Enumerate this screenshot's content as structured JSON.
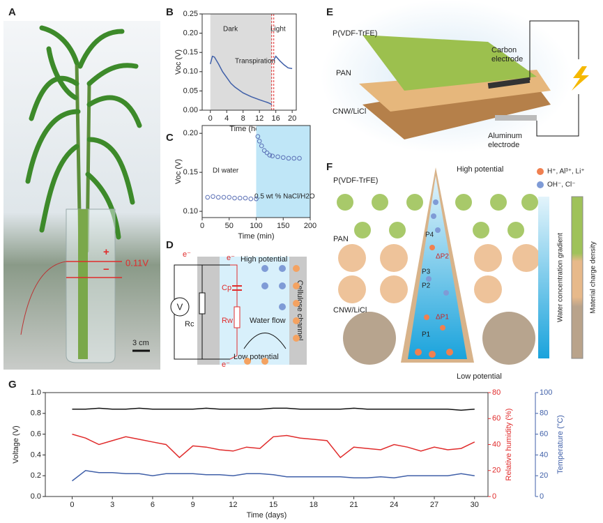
{
  "panels": {
    "a": "A",
    "b": "B",
    "c": "C",
    "d": "D",
    "e": "E",
    "f": "F",
    "g": "G"
  },
  "photo": {
    "voltage": "0.11V",
    "plus": "+",
    "minus": "−",
    "scale": "3 cm"
  },
  "circuit": {
    "electron": "e⁻",
    "electron_top": "e⁻",
    "electron_bottom": "e⁻",
    "high": "High potential",
    "low": "Low potential",
    "cp": "Cp",
    "rw": "Rw",
    "rc": "Rc",
    "flow": "Water flow",
    "channel": "Cellulose channel",
    "meter": "V"
  },
  "device": {
    "top": "P(VDF-TrFE)",
    "mid": "PAN",
    "bottom": "CNW/LiCl",
    "carbon": "Carbon\nelectrode",
    "aluminum": "Aluminum\nelectrode"
  },
  "mechanism": {
    "high": "High potential",
    "low": "Low potential",
    "top": "P(VDF-TrFE)",
    "mid": "PAN",
    "bottom": "CNW/LiCl",
    "cations": "H⁺, Al³⁺, Li⁺",
    "anions": "OH⁻, Cl⁻",
    "gradient": "Water concentration gradient",
    "charge": "Material charge density",
    "p4": "P4",
    "dp2": "ΔP2",
    "p3": "P3",
    "p2": "P2",
    "dp1": "ΔP1",
    "p1": "P1"
  },
  "chart_data": [
    {
      "type": "line",
      "xlabel": "Time (hour)",
      "ylabel": "Voc (V)",
      "annotations": [
        "Dark",
        "Light",
        "Transpiration"
      ],
      "shade": [
        {
          "from": 0,
          "to": 15,
          "color": "#dcdcdc"
        }
      ],
      "markers": [
        15,
        15.5
      ],
      "x": [
        0,
        0.5,
        1,
        2,
        3,
        4,
        5,
        6,
        8,
        10,
        12,
        14,
        15,
        15.2,
        15.5,
        16,
        17,
        18,
        19,
        20
      ],
      "series": [
        {
          "name": "Voc",
          "color": "#3f5fa8",
          "values": [
            0.12,
            0.14,
            0.138,
            0.12,
            0.1,
            0.085,
            0.07,
            0.06,
            0.045,
            0.035,
            0.027,
            0.02,
            0.015,
            null,
            0.13,
            0.14,
            0.128,
            0.118,
            0.11,
            0.108
          ]
        }
      ],
      "xlim": [
        -2,
        21
      ],
      "xticks": [
        0,
        4,
        8,
        12,
        16,
        20
      ],
      "ylim": [
        0,
        0.25
      ],
      "yticks": [
        {
          "value": 0,
          "label": "0.00"
        },
        {
          "value": 0.05,
          "label": "0.05"
        },
        {
          "value": 0.1,
          "label": "0.10"
        },
        {
          "value": 0.15,
          "label": "0.15"
        },
        {
          "value": 0.2,
          "label": "0.20"
        },
        {
          "value": 0.25,
          "label": "0.25"
        }
      ]
    },
    {
      "type": "scatter",
      "xlabel": "Time (min)",
      "ylabel": "Voc (V)",
      "annotations": [
        "DI water",
        "0.5 wt % NaCl/H2O"
      ],
      "shade": [
        {
          "from": 100,
          "to": 200,
          "color": "#bfe6f7"
        }
      ],
      "x": [
        10,
        20,
        30,
        40,
        50,
        60,
        70,
        80,
        90,
        100,
        103,
        106,
        110,
        115,
        120,
        125,
        130,
        140,
        150,
        160,
        170,
        180
      ],
      "series": [
        {
          "name": "Voc",
          "color": "#5a6fb5",
          "values": [
            0.118,
            0.119,
            0.118,
            0.118,
            0.118,
            0.117,
            0.117,
            0.117,
            0.116,
            0.116,
            0.196,
            0.19,
            0.184,
            0.178,
            0.175,
            0.172,
            0.171,
            0.17,
            0.169,
            0.168,
            0.168,
            0.168
          ]
        }
      ],
      "xlim": [
        0,
        200
      ],
      "xticks": [
        0,
        50,
        100,
        150,
        200
      ],
      "ylim": [
        0.092,
        0.21
      ],
      "yticks": [
        {
          "value": 0.1,
          "label": "0.10"
        },
        {
          "value": 0.15,
          "label": "0.15"
        },
        {
          "value": 0.2,
          "label": "0.20"
        }
      ]
    },
    {
      "type": "line",
      "xlabel": "Time (days)",
      "ylabel": "Voltage (V)",
      "y2label": "Relative humidity (%)",
      "y3label": "Temperature (°C)",
      "x": [
        0,
        1,
        2,
        3,
        4,
        5,
        6,
        7,
        8,
        9,
        10,
        11,
        12,
        13,
        14,
        15,
        16,
        17,
        18,
        19,
        20,
        21,
        22,
        23,
        24,
        25,
        26,
        27,
        28,
        29,
        30
      ],
      "series": [
        {
          "name": "Voltage",
          "color": "#111111",
          "axis": "y",
          "values": [
            0.84,
            0.84,
            0.85,
            0.84,
            0.84,
            0.85,
            0.84,
            0.84,
            0.84,
            0.84,
            0.85,
            0.84,
            0.84,
            0.84,
            0.84,
            0.85,
            0.85,
            0.84,
            0.84,
            0.84,
            0.84,
            0.85,
            0.84,
            0.84,
            0.84,
            0.84,
            0.84,
            0.84,
            0.84,
            0.83,
            0.84
          ]
        },
        {
          "name": "Relative humidity",
          "color": "#e02b2b",
          "axis": "y2",
          "values": [
            48,
            45,
            40,
            43,
            46,
            44,
            42,
            40,
            30,
            39,
            38,
            36,
            35,
            38,
            37,
            46,
            47,
            45,
            44,
            43,
            30,
            38,
            37,
            36,
            40,
            38,
            35,
            38,
            36,
            37,
            42
          ]
        },
        {
          "name": "Temperature",
          "color": "#3f5fa8",
          "axis": "y3",
          "values": [
            15,
            25,
            23,
            23,
            22,
            22,
            20,
            22,
            22,
            22,
            21,
            21,
            20,
            22,
            22,
            21,
            19,
            19,
            19,
            19,
            19,
            18,
            18,
            19,
            18,
            20,
            20,
            20,
            20,
            22,
            20
          ]
        }
      ],
      "xlim": [
        -2,
        31
      ],
      "xticks": [
        0,
        3,
        6,
        9,
        12,
        15,
        18,
        21,
        24,
        27,
        30
      ],
      "ylim": [
        0,
        1
      ],
      "yticks": [
        {
          "value": 0,
          "label": "0.0"
        },
        {
          "value": 0.2,
          "label": "0.2"
        },
        {
          "value": 0.4,
          "label": "0.4"
        },
        {
          "value": 0.6,
          "label": "0.6"
        },
        {
          "value": 0.8,
          "label": "0.8"
        },
        {
          "value": 1,
          "label": "1.0"
        }
      ],
      "y2lim": [
        0,
        80
      ],
      "y2ticks": [
        0,
        20,
        40,
        60,
        80
      ],
      "y3lim": [
        0,
        100
      ],
      "y3ticks": [
        0,
        20,
        40,
        60,
        80,
        100
      ]
    }
  ]
}
